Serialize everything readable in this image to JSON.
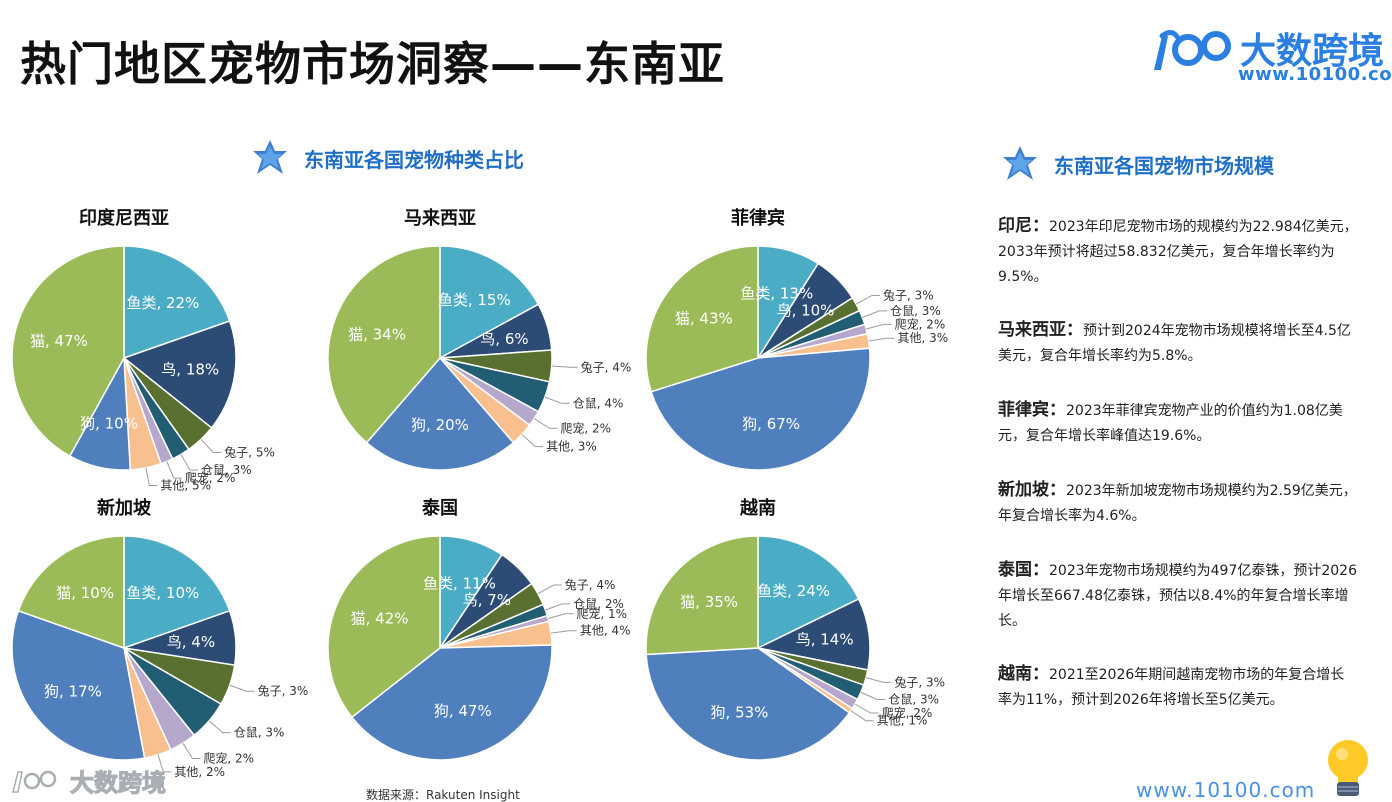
{
  "page": {
    "title": "热门地区宠物市场洞察——东南亚",
    "source": "数据来源：Rakuten Insight",
    "footer_url": "www.10100.com",
    "watermark_text": "大数跨境"
  },
  "brand": {
    "name": "大数跨境",
    "url": "www.10100.com",
    "color": "#2b7fe0"
  },
  "left_section": {
    "title": "东南亚各国宠物种类占比",
    "icon": "star-icon"
  },
  "right_section": {
    "title": "东南亚各国宠物市场规模",
    "icon": "star-icon"
  },
  "colors": {
    "鱼类": "#4bacc6",
    "鸟": "#2c4b75",
    "兔子": "#5a7030",
    "仓鼠": "#215d73",
    "爬宠": "#b6a7cd",
    "其他": "#f9c08f",
    "狗": "#4f80bd",
    "猫": "#9bbb59"
  },
  "chart_data": [
    {
      "type": "pie",
      "title": "印度尼西亚",
      "slices": [
        {
          "label": "鱼类",
          "value": 22
        },
        {
          "label": "鸟",
          "value": 18
        },
        {
          "label": "兔子",
          "value": 5
        },
        {
          "label": "仓鼠",
          "value": 3
        },
        {
          "label": "爬宠",
          "value": 2
        },
        {
          "label": "其他",
          "value": 5
        },
        {
          "label": "狗",
          "value": 10
        },
        {
          "label": "猫",
          "value": 47
        }
      ]
    },
    {
      "type": "pie",
      "title": "马来西亚",
      "slices": [
        {
          "label": "鱼类",
          "value": 15
        },
        {
          "label": "鸟",
          "value": 6
        },
        {
          "label": "兔子",
          "value": 4
        },
        {
          "label": "仓鼠",
          "value": 4
        },
        {
          "label": "爬宠",
          "value": 2
        },
        {
          "label": "其他",
          "value": 3
        },
        {
          "label": "狗",
          "value": 20
        },
        {
          "label": "猫",
          "value": 34
        }
      ]
    },
    {
      "type": "pie",
      "title": "菲律宾",
      "slices": [
        {
          "label": "鱼类",
          "value": 13
        },
        {
          "label": "鸟",
          "value": 10
        },
        {
          "label": "兔子",
          "value": 3
        },
        {
          "label": "仓鼠",
          "value": 3
        },
        {
          "label": "爬宠",
          "value": 2
        },
        {
          "label": "其他",
          "value": 3
        },
        {
          "label": "狗",
          "value": 67
        },
        {
          "label": "猫",
          "value": 43
        }
      ]
    },
    {
      "type": "pie",
      "title": "新加坡",
      "slices": [
        {
          "label": "鱼类",
          "value": 10
        },
        {
          "label": "鸟",
          "value": 4
        },
        {
          "label": "兔子",
          "value": 3
        },
        {
          "label": "仓鼠",
          "value": 3
        },
        {
          "label": "爬宠",
          "value": 2
        },
        {
          "label": "其他",
          "value": 2
        },
        {
          "label": "狗",
          "value": 17
        },
        {
          "label": "猫",
          "value": 10
        }
      ]
    },
    {
      "type": "pie",
      "title": "泰国",
      "slices": [
        {
          "label": "鱼类",
          "value": 11
        },
        {
          "label": "鸟",
          "value": 7
        },
        {
          "label": "兔子",
          "value": 4
        },
        {
          "label": "仓鼠",
          "value": 2
        },
        {
          "label": "爬宠",
          "value": 1
        },
        {
          "label": "其他",
          "value": 4
        },
        {
          "label": "狗",
          "value": 47
        },
        {
          "label": "猫",
          "value": 42
        }
      ]
    },
    {
      "type": "pie",
      "title": "越南",
      "slices": [
        {
          "label": "鱼类",
          "value": 24
        },
        {
          "label": "鸟",
          "value": 14
        },
        {
          "label": "兔子",
          "value": 3
        },
        {
          "label": "仓鼠",
          "value": 3
        },
        {
          "label": "爬宠",
          "value": 2
        },
        {
          "label": "其他",
          "value": 1
        },
        {
          "label": "狗",
          "value": 53
        },
        {
          "label": "猫",
          "value": 35
        }
      ]
    }
  ],
  "market": [
    {
      "name": "印尼：",
      "text": "2023年印尼宠物市场的规模约为22.984亿美元，2033年预计将超过58.832亿美元，复合年增长率约为9.5%。"
    },
    {
      "name": "马来西亚：",
      "text": "预计到2024年宠物市场规模将增长至4.5亿美元，复合年增长率约为5.8%。"
    },
    {
      "name": "菲律宾：",
      "text": "2023年菲律宾宠物产业的价值约为1.08亿美元，复合年增长率峰值达19.6%。"
    },
    {
      "name": "新加坡：",
      "text": "2023年新加坡宠物市场规模约为2.59亿美元，年复合增长率为4.6%。"
    },
    {
      "name": "泰国：",
      "text": "2023年宠物市场规模约为497亿泰铢，预计2026年增长至667.48亿泰铢，预估以8.4%的年复合增长率增长。"
    },
    {
      "name": "越南：",
      "text": "2021至2026年期间越南宠物市场的年复合增长率为11%，预计到2026年将增长至5亿美元。"
    }
  ]
}
